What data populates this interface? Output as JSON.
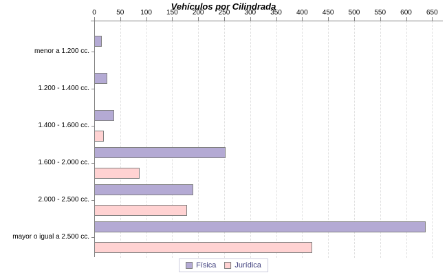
{
  "chart_data": {
    "type": "bar",
    "orientation": "horizontal",
    "title": "Vehículos por Cilindrada",
    "categories": [
      "menor a 1.200 cc.",
      "1.200 - 1.400 cc.",
      "1.400 - 1.600 cc.",
      "1.600 - 2.000 cc.",
      "2.000 - 2.500 cc.",
      "mayor o igual a 2.500 cc."
    ],
    "series": [
      {
        "name": "Física",
        "fill": "#b4aad4",
        "border": "#7f7f7f",
        "values": [
          14,
          25,
          38,
          253,
          191,
          638
        ]
      },
      {
        "name": "Jurídica",
        "fill": "#ffd2d2",
        "border": "#7f7f7f",
        "values": [
          0,
          0,
          18,
          87,
          179,
          420
        ]
      }
    ],
    "xlim": [
      0,
      650
    ],
    "xticks": [
      0,
      50,
      100,
      150,
      200,
      250,
      300,
      350,
      400,
      450,
      500,
      550,
      600,
      650
    ],
    "grid": "vertical-dashed",
    "legend": {
      "position": "bottom",
      "entries": [
        "Física",
        "Jurídica"
      ]
    },
    "colors": {
      "axis": "#808080",
      "gridline": "#e0e0e0",
      "title_text": "#000000",
      "tick_label_text": "#000000",
      "category_label_text": "#000000",
      "legend_text": "#40407e",
      "legend_border": "#ccccdd",
      "background": "#ffffff"
    }
  }
}
